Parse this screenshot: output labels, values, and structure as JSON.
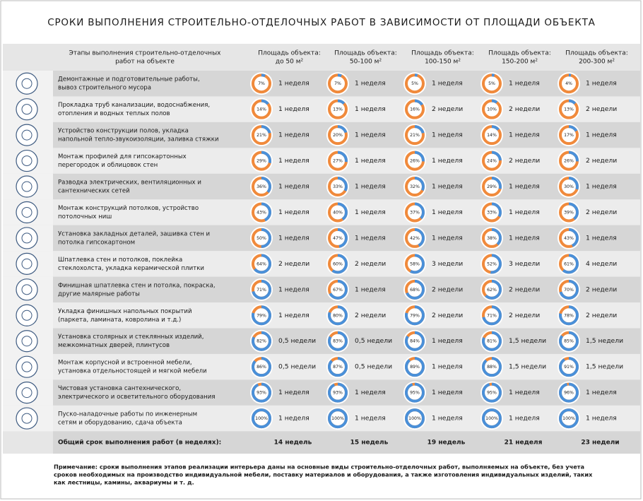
{
  "title": "СРОКИ ВЫПОЛНЕНИЯ СТРОИТЕЛЬНО-ОТДЕЛОЧНЫХ РАБОТ В ЗАВИСИМОСТИ ОТ ПЛОЩАДИ ОБЪЕКТА",
  "table": {
    "header": [
      [
        "Этапы выполнения строительно-отделочных",
        "работ на объекте"
      ],
      [
        "Площадь объекта:",
        "до 50 м²"
      ],
      [
        "Площадь объекта:",
        "50-100 м²"
      ],
      [
        "Площадь объекта:",
        "100-150 м²"
      ],
      [
        "Площадь объекта:",
        "150-200 м²"
      ],
      [
        "Площадь объекта:",
        "200-300 м²"
      ]
    ],
    "rows": [
      {
        "stage": [
          "Демонтажные и подготовительные работы,",
          "вывоз строительного мусора"
        ],
        "cells": [
          {
            "percent": 7,
            "percent_label": "7%",
            "duration": "1 неделя"
          },
          {
            "percent": 7,
            "percent_label": "7%",
            "duration": "1 неделя"
          },
          {
            "percent": 5,
            "percent_label": "5%",
            "duration": "1 неделя"
          },
          {
            "percent": 5,
            "percent_label": "5%",
            "duration": "1 неделя"
          },
          {
            "percent": 4,
            "percent_label": "4%",
            "duration": "1 неделя"
          }
        ]
      },
      {
        "stage": [
          "Прокладка труб канализации, водоснабжения,",
          "отопления и водных теплых полов"
        ],
        "cells": [
          {
            "percent": 14,
            "percent_label": "14%",
            "duration": "1 неделя"
          },
          {
            "percent": 13,
            "percent_label": "13%",
            "duration": "1 неделя"
          },
          {
            "percent": 16,
            "percent_label": "16%",
            "duration": "2 недели"
          },
          {
            "percent": 10,
            "percent_label": "10%",
            "duration": "2 недели"
          },
          {
            "percent": 13,
            "percent_label": "13%",
            "duration": "2 недели"
          }
        ]
      },
      {
        "stage": [
          "Устройство конструкции полов, укладка",
          "напольной тепло-звукоизоляции, заливка стяжки"
        ],
        "cells": [
          {
            "percent": 21,
            "percent_label": "21%",
            "duration": "1 неделя"
          },
          {
            "percent": 20,
            "percent_label": "20%",
            "duration": "1 неделя"
          },
          {
            "percent": 21,
            "percent_label": "21%",
            "duration": "1 неделя"
          },
          {
            "percent": 14,
            "percent_label": "14%",
            "duration": "1 неделя"
          },
          {
            "percent": 17,
            "percent_label": "17%",
            "duration": "1 неделя"
          }
        ]
      },
      {
        "stage": [
          "Монтаж профилей для гипсокартонных",
          "перегородок и облицовок стен"
        ],
        "cells": [
          {
            "percent": 29,
            "percent_label": "29%",
            "duration": "1 неделя"
          },
          {
            "percent": 27,
            "percent_label": "27%",
            "duration": "1 неделя"
          },
          {
            "percent": 26,
            "percent_label": "26%",
            "duration": "1 неделя"
          },
          {
            "percent": 24,
            "percent_label": "24%",
            "duration": "2 недели"
          },
          {
            "percent": 26,
            "percent_label": "26%",
            "duration": "2 недели"
          }
        ]
      },
      {
        "stage": [
          "Разводка электрических, вентиляционных и",
          "сантехнических сетей"
        ],
        "cells": [
          {
            "percent": 36,
            "percent_label": "36%",
            "duration": "1 неделя"
          },
          {
            "percent": 33,
            "percent_label": "33%",
            "duration": "1 неделя"
          },
          {
            "percent": 32,
            "percent_label": "32%",
            "duration": "1 неделя"
          },
          {
            "percent": 29,
            "percent_label": "29%",
            "duration": "1 неделя"
          },
          {
            "percent": 30,
            "percent_label": "30%",
            "duration": "1 неделя"
          }
        ]
      },
      {
        "stage": [
          "Монтаж конструкций потолков, устройство",
          "потолочных ниш"
        ],
        "cells": [
          {
            "percent": 43,
            "percent_label": "43%",
            "duration": "1 неделя"
          },
          {
            "percent": 40,
            "percent_label": "40%",
            "duration": "1 неделя"
          },
          {
            "percent": 37,
            "percent_label": "37%",
            "duration": "1 неделя"
          },
          {
            "percent": 33,
            "percent_label": "33%",
            "duration": "1 неделя"
          },
          {
            "percent": 39,
            "percent_label": "39%",
            "duration": "2 недели"
          }
        ]
      },
      {
        "stage": [
          "Установка закладных деталей, зашивка стен и",
          "потолка гипсокартоном"
        ],
        "cells": [
          {
            "percent": 50,
            "percent_label": "50%",
            "duration": "1 неделя"
          },
          {
            "percent": 47,
            "percent_label": "47%",
            "duration": "1 неделя"
          },
          {
            "percent": 42,
            "percent_label": "42%",
            "duration": "1 неделя"
          },
          {
            "percent": 38,
            "percent_label": "38%",
            "duration": "1 неделя"
          },
          {
            "percent": 43,
            "percent_label": "43%",
            "duration": "1 неделя"
          }
        ]
      },
      {
        "stage": [
          "Шпатлевка стен и потолков, поклейка",
          "стеклохолста, укладка керамической плитки"
        ],
        "cells": [
          {
            "percent": 64,
            "percent_label": "64%",
            "duration": "2 недели"
          },
          {
            "percent": 60,
            "percent_label": "60%",
            "duration": "2 недели"
          },
          {
            "percent": 58,
            "percent_label": "58%",
            "duration": "3 недели"
          },
          {
            "percent": 52,
            "percent_label": "52%",
            "duration": "3 недели"
          },
          {
            "percent": 61,
            "percent_label": "61%",
            "duration": "4 недели"
          }
        ]
      },
      {
        "stage": [
          "Финишная шпатлевка стен и потолка, покраска,",
          "другие малярные работы"
        ],
        "cells": [
          {
            "percent": 71,
            "percent_label": "71%",
            "duration": "1 неделя"
          },
          {
            "percent": 67,
            "percent_label": "67%",
            "duration": "1 неделя"
          },
          {
            "percent": 68,
            "percent_label": "68%",
            "duration": "2 недели"
          },
          {
            "percent": 62,
            "percent_label": "62%",
            "duration": "2 недели"
          },
          {
            "percent": 70,
            "percent_label": "70%",
            "duration": "2 недели"
          }
        ]
      },
      {
        "stage": [
          "Укладка финишных напольных покрытий",
          "(паркета, ламината, ковролина и т.д.)"
        ],
        "cells": [
          {
            "percent": 79,
            "percent_label": "79%",
            "duration": "1 неделя"
          },
          {
            "percent": 80,
            "percent_label": "80%",
            "duration": "2 недели"
          },
          {
            "percent": 79,
            "percent_label": "79%",
            "duration": "2 недели"
          },
          {
            "percent": 71,
            "percent_label": "71%",
            "duration": "2 недели"
          },
          {
            "percent": 78,
            "percent_label": "78%",
            "duration": "2 недели"
          }
        ]
      },
      {
        "stage": [
          "Установка столярных и стеклянных изделий,",
          "межкомнатных дверей, плинтусов"
        ],
        "cells": [
          {
            "percent": 82,
            "percent_label": "82%",
            "duration": "0,5 недели"
          },
          {
            "percent": 83,
            "percent_label": "83%",
            "duration": "0,5 недели"
          },
          {
            "percent": 84,
            "percent_label": "84%",
            "duration": "1 неделя"
          },
          {
            "percent": 81,
            "percent_label": "81%",
            "duration": "1,5 недели"
          },
          {
            "percent": 85,
            "percent_label": "85%",
            "duration": "1,5 недели"
          }
        ]
      },
      {
        "stage": [
          "Монтаж корпусной и встроенной мебели,",
          "установка отдельностоящей и мягкой мебели"
        ],
        "cells": [
          {
            "percent": 86,
            "percent_label": "86%",
            "duration": "0,5 недели"
          },
          {
            "percent": 87,
            "percent_label": "87%",
            "duration": "0,5 недели"
          },
          {
            "percent": 89,
            "percent_label": "89%",
            "duration": "1 неделя"
          },
          {
            "percent": 88,
            "percent_label": "88%",
            "duration": "1,5 недели"
          },
          {
            "percent": 91,
            "percent_label": "91%",
            "duration": "1,5 недели"
          }
        ]
      },
      {
        "stage": [
          "Чистовая установка сантехнического,",
          "электрического и осветительного оборудования"
        ],
        "cells": [
          {
            "percent": 93,
            "percent_label": "93%",
            "duration": "1 неделя"
          },
          {
            "percent": 93,
            "percent_label": "93%",
            "duration": "1 неделя"
          },
          {
            "percent": 95,
            "percent_label": "95%",
            "duration": "1 неделя"
          },
          {
            "percent": 95,
            "percent_label": "95%",
            "duration": "1 неделя"
          },
          {
            "percent": 96,
            "percent_label": "96%",
            "duration": "1 неделя"
          }
        ]
      },
      {
        "stage": [
          "Пуско-наладочные работы по инженерным",
          "сетям и оборудованию, сдача объекта"
        ],
        "cells": [
          {
            "percent": 100,
            "percent_label": "100%",
            "duration": "1 неделя"
          },
          {
            "percent": 100,
            "percent_label": "100%",
            "duration": "1 неделя"
          },
          {
            "percent": 100,
            "percent_label": "100%",
            "duration": "1 неделя"
          },
          {
            "percent": 100,
            "percent_label": "100%",
            "duration": "1 неделя"
          },
          {
            "percent": 100,
            "percent_label": "100%",
            "duration": "1 неделя"
          }
        ]
      }
    ],
    "total": {
      "label": "Общий срок выполнения работ (в неделях):",
      "values": [
        "14 недель",
        "15 недель",
        "19 недель",
        "21 неделя",
        "23 недели"
      ]
    }
  },
  "note": [
    "Примечание: сроки выполнения этапов реализации интерьера даны на основные виды строительно-отделочных работ, выполняемых на объекте, без учета",
    "сроков необходимых на производство индивидуальной мебели, поставку материалов и оборудования, а также изготовления индивидуальных изделий, таких",
    "как лестницы, камины, аквариумы и т. д."
  ]
}
